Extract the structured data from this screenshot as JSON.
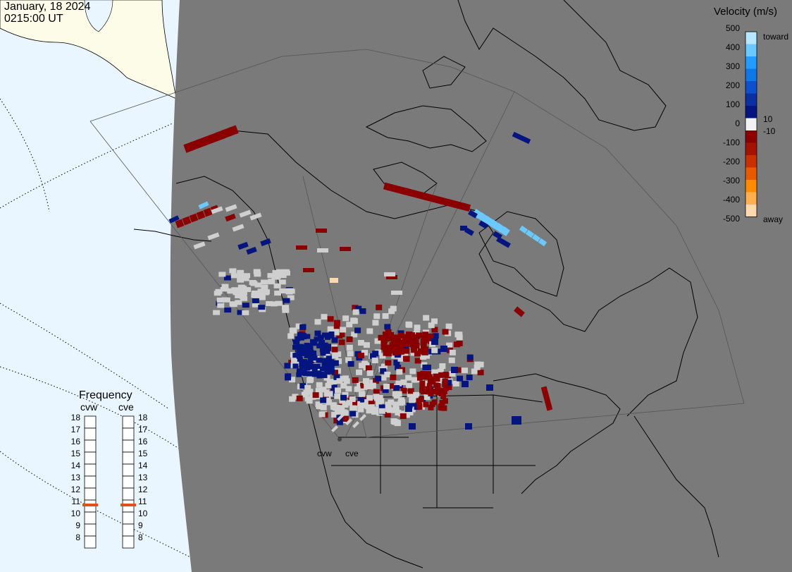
{
  "header": {
    "date": "January, 18 2024",
    "time": "0215:00 UT"
  },
  "legend": {
    "title": "Velocity (m/s)",
    "ticks": [
      "500",
      "400",
      "300",
      "200",
      "100",
      "10",
      "0",
      "-10",
      "-100",
      "-200",
      "-300",
      "-400",
      "-500"
    ],
    "toward_label": "toward",
    "away_label": "away",
    "colors": [
      "#b7e6ff",
      "#6cc9ff",
      "#249cff",
      "#1078e6",
      "#0e4fcc",
      "#0a2fa0",
      "#041580",
      "#f2f2f2",
      "#8a0000",
      "#a31400",
      "#c83000",
      "#e85a00",
      "#ff8c00",
      "#ffb050",
      "#ffd8b0"
    ]
  },
  "frequency": {
    "title": "Frequency",
    "radars": [
      {
        "name": "cvw",
        "value": 11
      },
      {
        "name": "cve",
        "value": 11
      }
    ],
    "scale": [
      "18",
      "17",
      "16",
      "15",
      "14",
      "13",
      "12",
      "11",
      "10",
      "9",
      "8"
    ],
    "marker_color": "#e0501a"
  },
  "radar_sites": [
    "cvw",
    "cve"
  ],
  "colors": {
    "map_background": "#7a7a7a",
    "ocean": "#eaf6ff",
    "land_outside": "#fcfce9",
    "toward_dark": "#041580",
    "toward_light": "#6cc9ff",
    "away_dark": "#8a0000",
    "ground_scatter": "#cfcfcf"
  }
}
